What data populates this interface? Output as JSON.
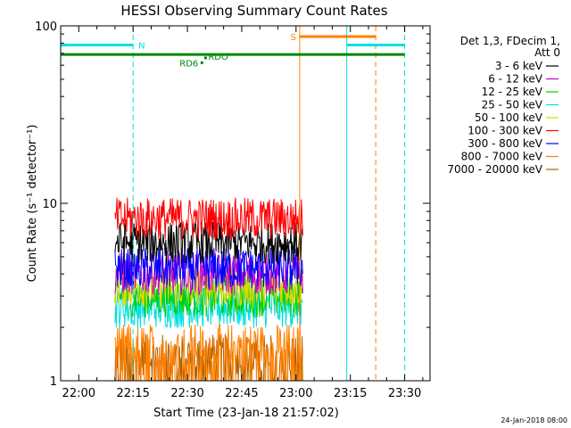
{
  "chart_data": {
    "type": "line",
    "title": "HESSI Observing Summary Count Rates",
    "xlabel": "Start Time (23-Jan-18 21:57:02)",
    "ylabel": "Count Rate (s⁻¹ detector⁻¹)",
    "y_scale": "log",
    "ylim": [
      1,
      100
    ],
    "xlim": [
      "21:55",
      "23:37"
    ],
    "x_ticks": [
      "22:00",
      "22:15",
      "22:30",
      "22:45",
      "23:00",
      "23:15",
      "23:30"
    ],
    "y_ticks": [
      "1",
      "10",
      "100"
    ],
    "grid": false,
    "legend_position": "right",
    "legend_header": [
      "Det 1,3, FDecim 1,",
      "Att 0"
    ],
    "series": [
      {
        "name": "3 - 6 keV",
        "color": "#000000",
        "time_range": [
          "22:10",
          "23:02"
        ],
        "level": 6.0
      },
      {
        "name": "6 - 12 keV",
        "color": "#cc00cc",
        "time_range": [
          "22:10",
          "23:02"
        ],
        "level": 4.0
      },
      {
        "name": "12 - 25 keV",
        "color": "#00cc00",
        "time_range": [
          "22:10",
          "23:02"
        ],
        "level": 3.0
      },
      {
        "name": "25 - 50 keV",
        "color": "#00e0e0",
        "time_range": [
          "22:10",
          "23:02"
        ],
        "level": 2.6
      },
      {
        "name": "50 - 100 keV",
        "color": "#d8d800",
        "time_range": [
          "22:10",
          "23:02"
        ],
        "level": 3.4
      },
      {
        "name": "100 - 300 keV",
        "color": "#ff0000",
        "time_range": [
          "22:10",
          "23:02"
        ],
        "level": 8.2
      },
      {
        "name": "300 - 800 keV",
        "color": "#0000ff",
        "time_range": [
          "22:10",
          "23:02"
        ],
        "level": 4.3
      },
      {
        "name": "800 - 7000 keV",
        "color": "#ff8000",
        "time_range": [
          "22:10",
          "23:02"
        ],
        "level": 1.6
      },
      {
        "name": "7000 - 20000 keV",
        "color": "#b06000",
        "time_range": [
          "22:10",
          "23:02"
        ],
        "level": 1.4
      }
    ],
    "flag_bars": [
      {
        "label": "N",
        "color": "#00e0e0",
        "segments": [
          [
            "21:55",
            "22:15"
          ],
          [
            "23:14",
            "23:30"
          ]
        ],
        "value": 78
      },
      {
        "label": "S",
        "color": "#ff8000",
        "segments": [
          [
            "23:01",
            "23:22"
          ]
        ],
        "value": 87
      },
      {
        "label": "",
        "color": "#008800",
        "segments": [
          [
            "21:55",
            "23:30"
          ]
        ],
        "value": 69
      }
    ],
    "flag_markers": [
      {
        "label": "RD6",
        "color": "#008800",
        "time": "22:34",
        "value": 62
      },
      {
        "label": "RDO",
        "color": "#008800",
        "time": "22:35",
        "value": 66
      }
    ],
    "vertical_lines": [
      {
        "time": "21:55",
        "color": "#00e0e0",
        "style": "solid"
      },
      {
        "time": "22:15",
        "color": "#00e0e0",
        "style": "dashed"
      },
      {
        "time": "23:01",
        "color": "#ff8000",
        "style": "solid"
      },
      {
        "time": "23:14",
        "color": "#00e0e0",
        "style": "solid"
      },
      {
        "time": "23:22",
        "color": "#ff8000",
        "style": "dashed"
      },
      {
        "time": "23:30",
        "color": "#00e0e0",
        "style": "dashed"
      }
    ]
  },
  "footer": {
    "date_stamp": "24-Jan-2018 08:00"
  }
}
